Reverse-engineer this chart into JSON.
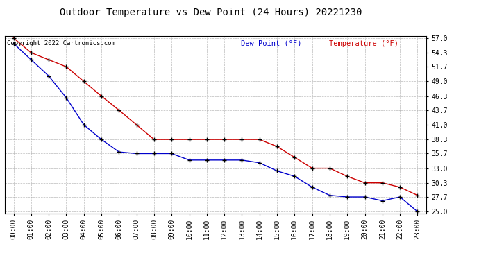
{
  "title": "Outdoor Temperature vs Dew Point (24 Hours) 20221230",
  "copyright_text": "Copyright 2022 Cartronics.com",
  "legend_dew": "Dew Point (°F)",
  "legend_temp": "Temperature (°F)",
  "background_color": "#ffffff",
  "grid_color": "#aaaaaa",
  "x_labels": [
    "00:00",
    "01:00",
    "02:00",
    "03:00",
    "04:00",
    "05:00",
    "06:00",
    "07:00",
    "08:00",
    "09:00",
    "10:00",
    "11:00",
    "12:00",
    "13:00",
    "14:00",
    "15:00",
    "16:00",
    "17:00",
    "18:00",
    "19:00",
    "20:00",
    "21:00",
    "22:00",
    "23:00"
  ],
  "temperature": [
    57.0,
    54.3,
    53.0,
    51.7,
    49.0,
    46.3,
    43.7,
    41.0,
    38.3,
    38.3,
    38.3,
    38.3,
    38.3,
    38.3,
    38.3,
    37.0,
    35.0,
    33.0,
    33.0,
    31.5,
    30.3,
    30.3,
    29.5,
    28.0
  ],
  "dew_point": [
    56.0,
    53.0,
    50.0,
    46.0,
    41.0,
    38.3,
    36.0,
    35.7,
    35.7,
    35.7,
    34.5,
    34.5,
    34.5,
    34.5,
    34.0,
    32.5,
    31.5,
    29.5,
    28.0,
    27.7,
    27.7,
    27.0,
    27.7,
    25.0
  ],
  "temp_color": "#cc0000",
  "dew_color": "#0000cc",
  "marker": "+",
  "marker_color": "#000000",
  "ylim_min": 25.0,
  "ylim_max": 57.0,
  "yticks": [
    25.0,
    27.7,
    30.3,
    33.0,
    35.7,
    38.3,
    41.0,
    43.7,
    46.3,
    49.0,
    51.7,
    54.3,
    57.0
  ],
  "title_fontsize": 10,
  "legend_fontsize": 7.5,
  "copyright_fontsize": 6.5,
  "tick_fontsize": 7
}
